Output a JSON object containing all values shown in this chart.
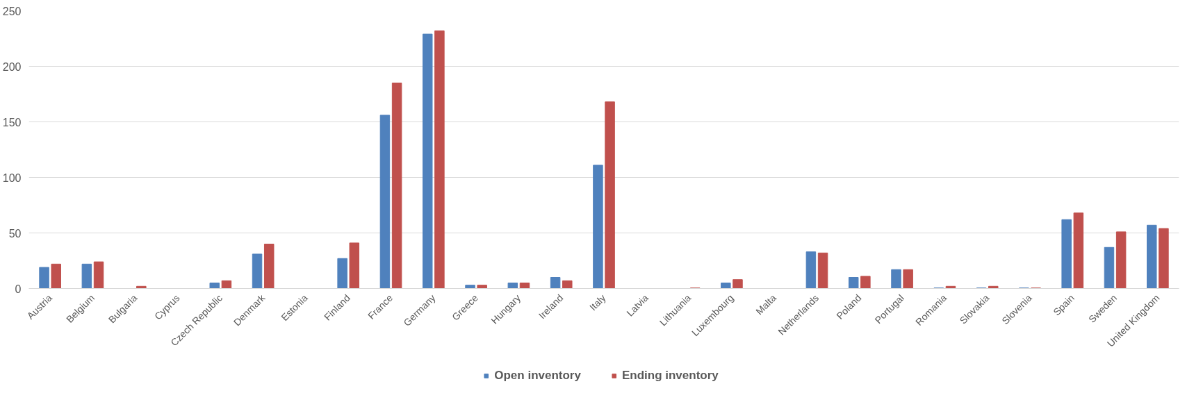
{
  "chart_data": {
    "type": "bar",
    "categories": [
      "Austria",
      "Belgium",
      "Bulgaria",
      "Cyprus",
      "Czech Republic",
      "Denmark",
      "Estonia",
      "Finland",
      "France",
      "Germany",
      "Greece",
      "Hungary",
      "Ireland",
      "Italy",
      "Latvia",
      "Lithuania",
      "Luxembourg",
      "Malta",
      "Netherlands",
      "Poland",
      "Portugal",
      "Romania",
      "Slovakia",
      "Slovenia",
      "Spain",
      "Sweden",
      "United Kingdom"
    ],
    "series": [
      {
        "name": "Open inventory",
        "color": "#4f81bd",
        "values": [
          19,
          22,
          0,
          0,
          5,
          31,
          0,
          27,
          156,
          229,
          3,
          5,
          10,
          111,
          0,
          0,
          5,
          0,
          33,
          10,
          17,
          0.5,
          0.5,
          0.5,
          62,
          37,
          57
        ]
      },
      {
        "name": "Ending inventory",
        "color": "#c0504d",
        "values": [
          22,
          24,
          2,
          0,
          7,
          40,
          0,
          41,
          185,
          232,
          3,
          5,
          7,
          168,
          0,
          0.5,
          8,
          0,
          32,
          11,
          17,
          2,
          2,
          0.5,
          68,
          51,
          54
        ]
      }
    ],
    "ylim": [
      0,
      250
    ],
    "yticks": [
      0,
      50,
      100,
      150,
      200,
      250
    ],
    "grid": "y",
    "legend": "bottom"
  }
}
